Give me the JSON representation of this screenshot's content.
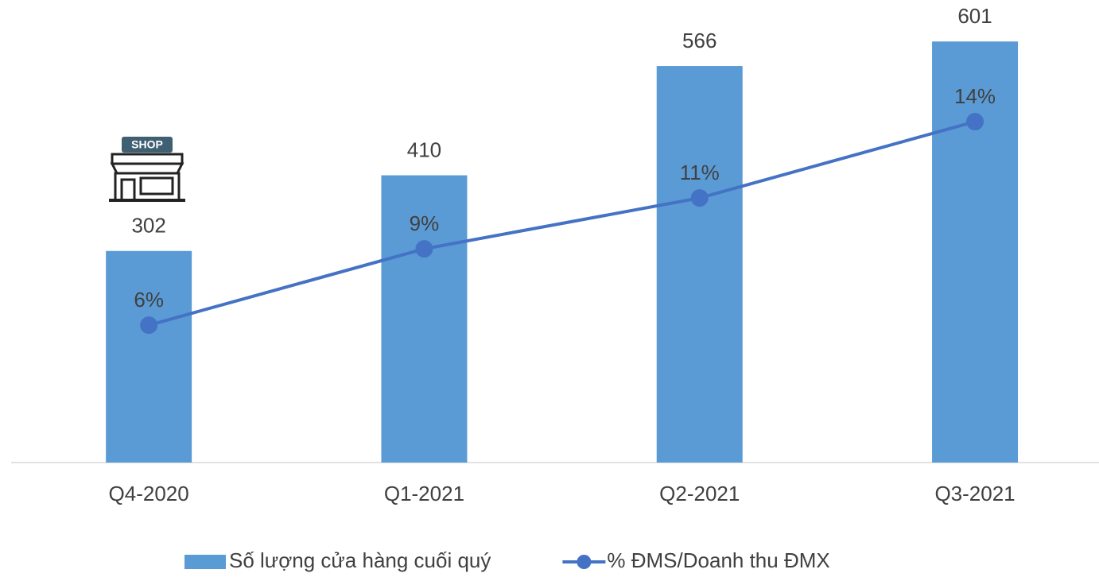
{
  "chart_data": {
    "type": "bar",
    "categories": [
      "Q4-2020",
      "Q1-2021",
      "Q2-2021",
      "Q3-2021"
    ],
    "series": [
      {
        "name": "Số lượng cửa hàng cuối quý",
        "type": "bar",
        "color": "#5b9bd5",
        "values": [
          302,
          410,
          566,
          601
        ]
      },
      {
        "name": "% ĐMS/Doanh thu ĐMX",
        "type": "line",
        "axis": "y2",
        "color": "#4472c4",
        "values": [
          6,
          9,
          11,
          14
        ],
        "value_labels": [
          "6%",
          "9%",
          "11%",
          "14%"
        ]
      }
    ],
    "ylim": [
      0,
      650
    ],
    "y2lim": [
      0.6,
      18.5
    ],
    "legend": "bottom",
    "annotation": "SHOP"
  }
}
